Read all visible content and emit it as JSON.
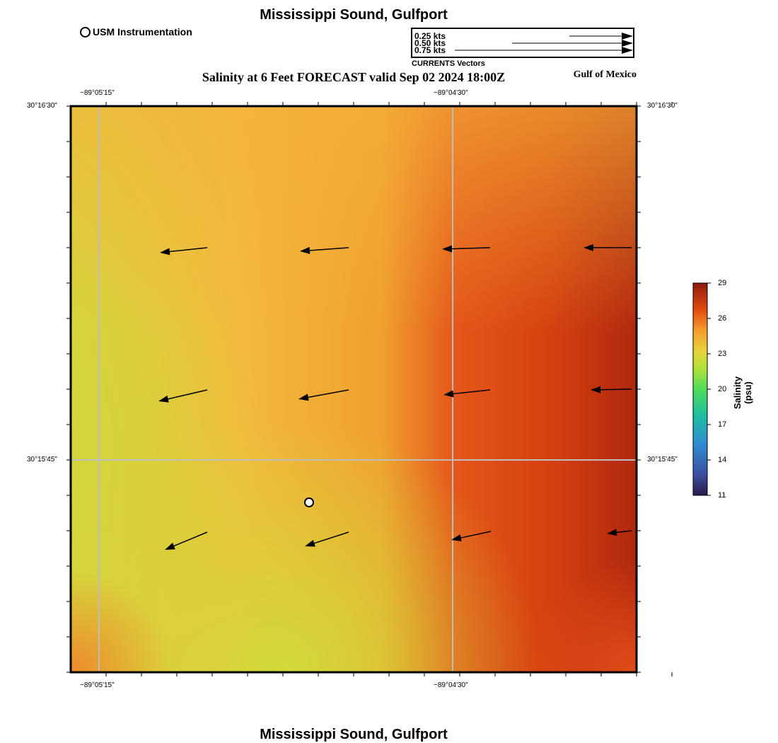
{
  "header": {
    "title": "Mississippi Sound, Gulfport",
    "instrument_legend": "USM Instrumentation",
    "subtitle": "Salinity at 6 Feet FORECAST valid Sep 02 2024 18:00Z",
    "region": "Gulf of Mexico"
  },
  "vector_legend": {
    "rows": [
      "0.25 kts",
      "0.50 kts",
      "0.75 kts"
    ],
    "speeds_kts": [
      0.25,
      0.5,
      0.75
    ],
    "caption": "CURRENTS Vectors"
  },
  "axes": {
    "lon_labels": [
      "−89°05'15\"",
      "−89°04'30\""
    ],
    "lat_labels": [
      "30°16'30\"",
      "30°15'45\""
    ]
  },
  "colorbar": {
    "title": "Salinity (psu)",
    "ticks": [
      "29",
      "26",
      "23",
      "20",
      "17",
      "14",
      "11"
    ],
    "min": 11,
    "max": 29
  },
  "colors": {
    "low_salinity": "#d2d83a",
    "mid_salinity": "#f5b83c",
    "high_salinity": "#e04a0e",
    "max_salinity": "#a9220d"
  },
  "footer": {
    "title": "Mississippi Sound, Gulfport"
  }
}
